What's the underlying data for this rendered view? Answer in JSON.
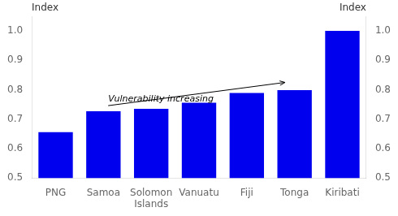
{
  "chart_data": {
    "type": "bar",
    "categories": [
      "PNG",
      "Samoa",
      "Solomon\nIslands",
      "Vanuatu",
      "Fiji",
      "Tonga",
      "Kiribati"
    ],
    "values": [
      0.656,
      0.727,
      0.735,
      0.756,
      0.789,
      0.799,
      1.0
    ],
    "color": "#0000EE",
    "ylim": [
      0.5,
      1.05
    ],
    "yticks": [
      0.5,
      0.6,
      0.7,
      0.8,
      0.9,
      {
        "value": 1.0,
        "label": "1.0"
      }
    ],
    "y2lim": [
      0.5,
      1.05
    ],
    "y2ticks": [
      0.5,
      0.6,
      0.7,
      0.8,
      0.9,
      {
        "value": 1.0,
        "label": "1.0"
      }
    ],
    "ylabel": "Index",
    "y2label": "Index",
    "annotations": [
      {
        "text": "Vulnerability increasing",
        "x": 1.1,
        "y": 0.746,
        "arrow_x": 4.8,
        "arrow_y": 0.825
      }
    ],
    "grid": false
  }
}
